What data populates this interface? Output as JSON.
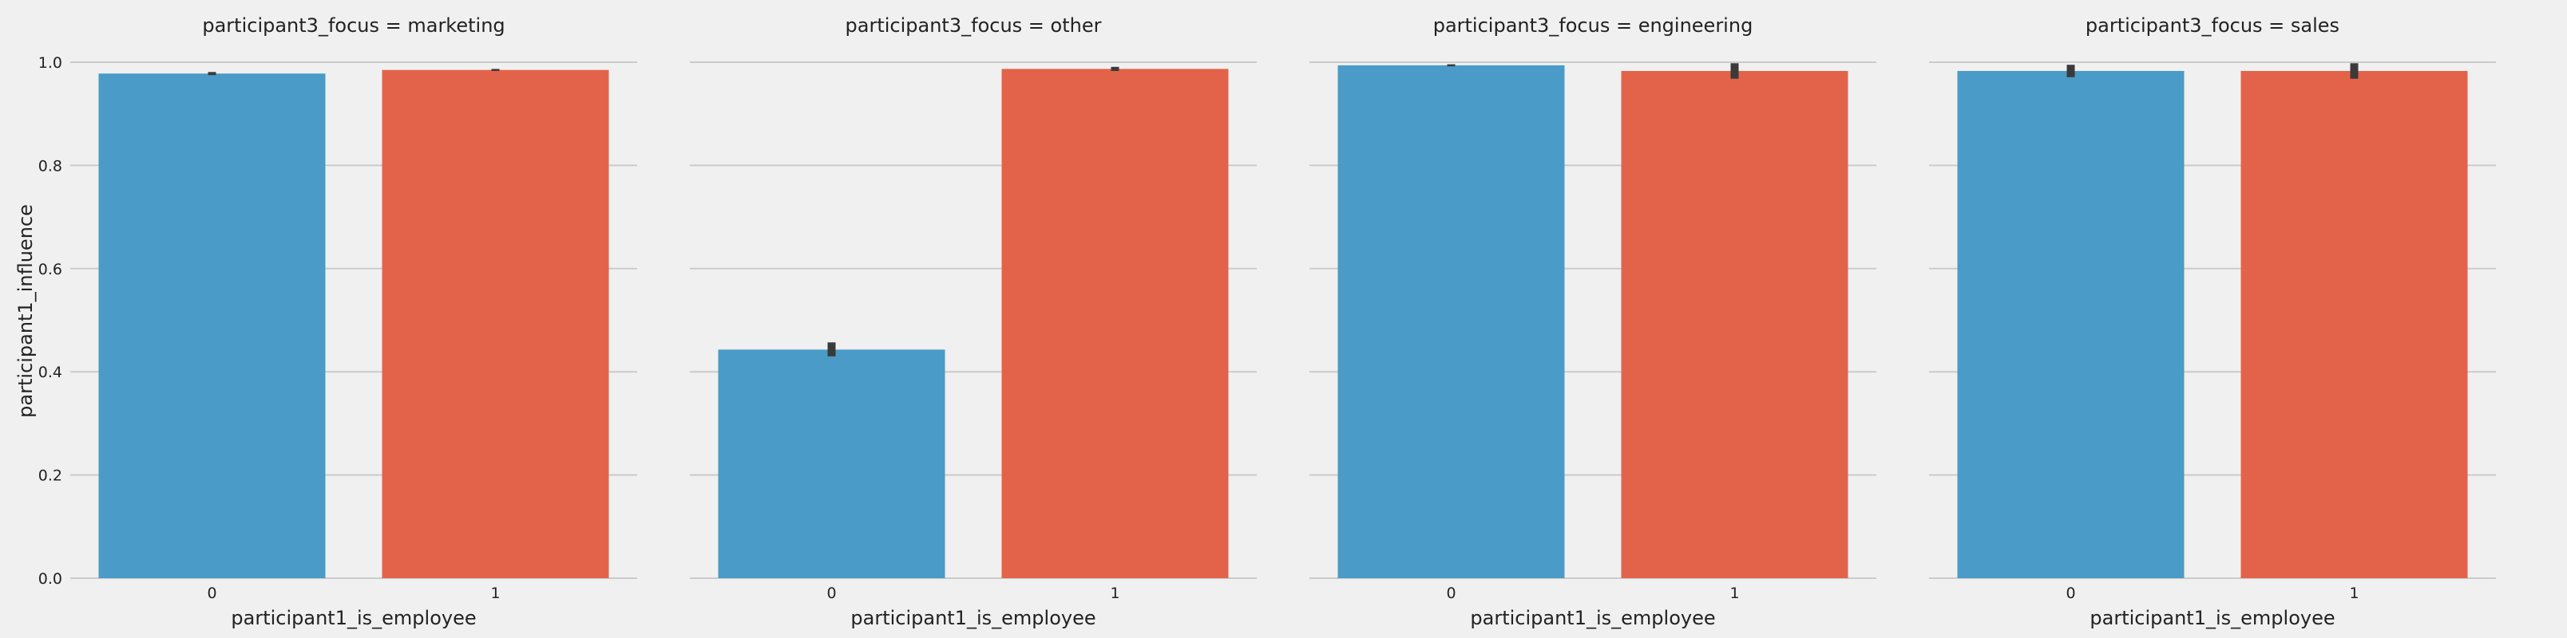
{
  "chart_data": {
    "type": "bar",
    "ylabel": "participant1_influence",
    "ylim": [
      0,
      1.0
    ],
    "yticks": [
      "0.0",
      "0.2",
      "0.4",
      "0.6",
      "0.8",
      "1.0"
    ],
    "grid": true,
    "colors": [
      "#4a9bc7",
      "#e3634a"
    ],
    "panels": [
      {
        "title": "participant3_focus = marketing",
        "xlabel": "participant1_is_employee",
        "categories": [
          "0",
          "1"
        ],
        "values": [
          0.978,
          0.985
        ],
        "error_low": [
          0.975,
          0.983
        ],
        "error_high": [
          0.981,
          0.987
        ]
      },
      {
        "title": "participant3_focus = other",
        "xlabel": "participant1_is_employee",
        "categories": [
          "0",
          "1"
        ],
        "values": [
          0.443,
          0.987
        ],
        "error_low": [
          0.43,
          0.983
        ],
        "error_high": [
          0.457,
          0.991
        ]
      },
      {
        "title": "participant3_focus = engineering",
        "xlabel": "participant1_is_employee",
        "categories": [
          "0",
          "1"
        ],
        "values": [
          0.994,
          0.983
        ],
        "error_low": [
          0.992,
          0.968
        ],
        "error_high": [
          0.996,
          0.998
        ]
      },
      {
        "title": "participant3_focus = sales",
        "xlabel": "participant1_is_employee",
        "categories": [
          "0",
          "1"
        ],
        "values": [
          0.983,
          0.983
        ],
        "error_low": [
          0.971,
          0.968
        ],
        "error_high": [
          0.995,
          0.998
        ]
      }
    ]
  }
}
